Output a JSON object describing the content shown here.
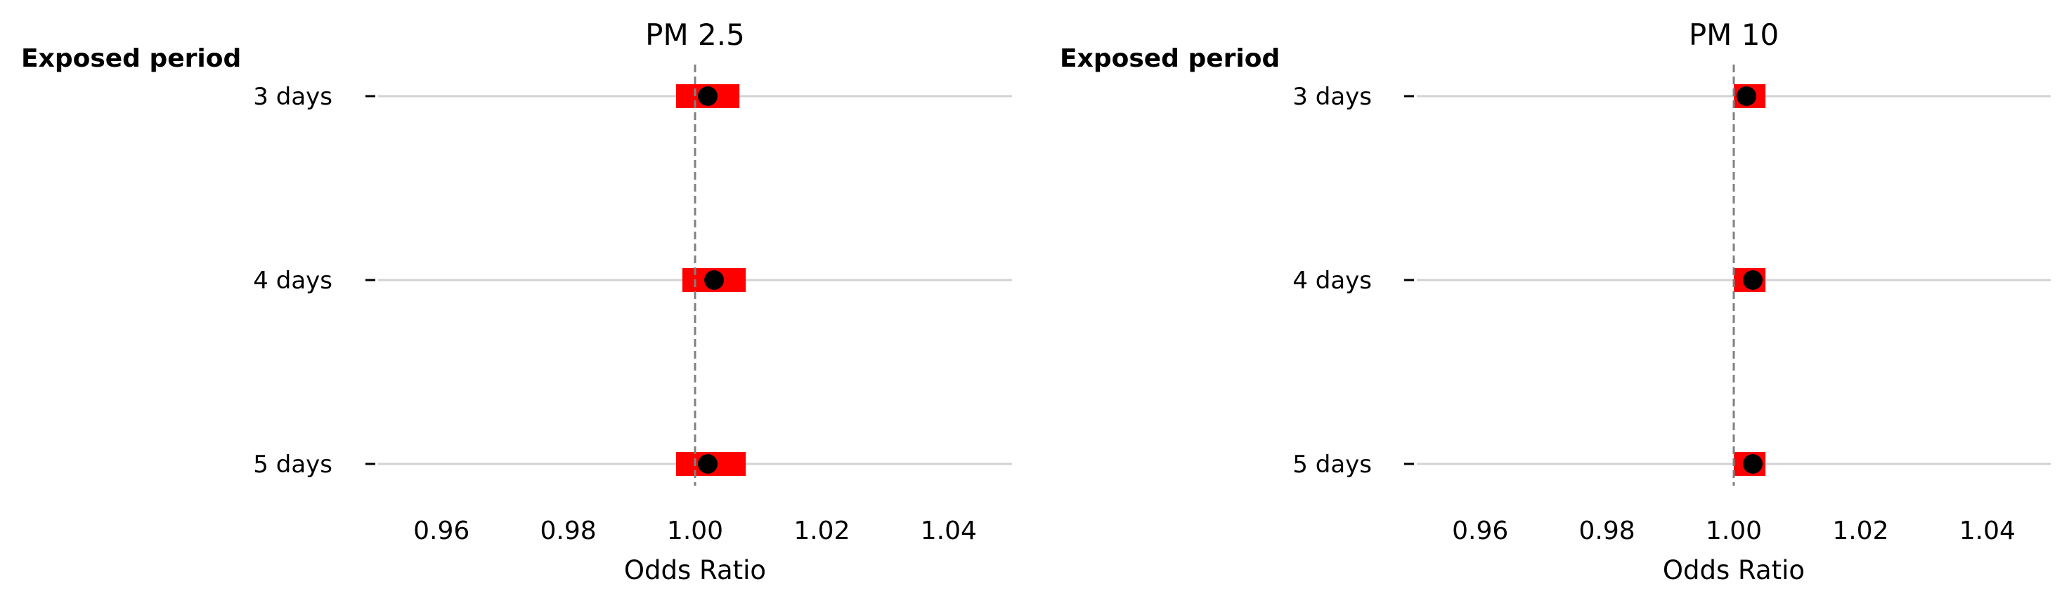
{
  "chart_data": [
    {
      "type": "forest",
      "title": "PM 2.5",
      "y_header": "Exposed period",
      "xlabel": "Odds Ratio",
      "xlim": [
        0.95,
        1.05
      ],
      "xticks": [
        "0.96",
        "0.98",
        "1.00",
        "1.02",
        "1.04"
      ],
      "reference_line": 1.0,
      "categories": [
        "3 days",
        "4 days",
        "5 days"
      ],
      "odds_ratio": [
        1.002,
        1.003,
        1.002
      ],
      "ci_lower": [
        0.997,
        0.998,
        0.997
      ],
      "ci_upper": [
        1.007,
        1.008,
        1.008
      ],
      "grid": true
    },
    {
      "type": "forest",
      "title": "PM 10",
      "y_header": "Exposed period",
      "xlabel": "Odds Ratio",
      "xlim": [
        0.95,
        1.05
      ],
      "xticks": [
        "0.96",
        "0.98",
        "1.00",
        "1.02",
        "1.04"
      ],
      "reference_line": 1.0,
      "categories": [
        "3 days",
        "4 days",
        "5 days"
      ],
      "odds_ratio": [
        1.002,
        1.003,
        1.003
      ],
      "ci_lower": [
        1.0,
        1.0,
        1.0
      ],
      "ci_upper": [
        1.005,
        1.005,
        1.005
      ],
      "grid": true
    }
  ],
  "colors": {
    "ci_bar": "#ff0000",
    "point": "#000000",
    "gridline": "#d3d3d3",
    "reference": "#808080"
  }
}
